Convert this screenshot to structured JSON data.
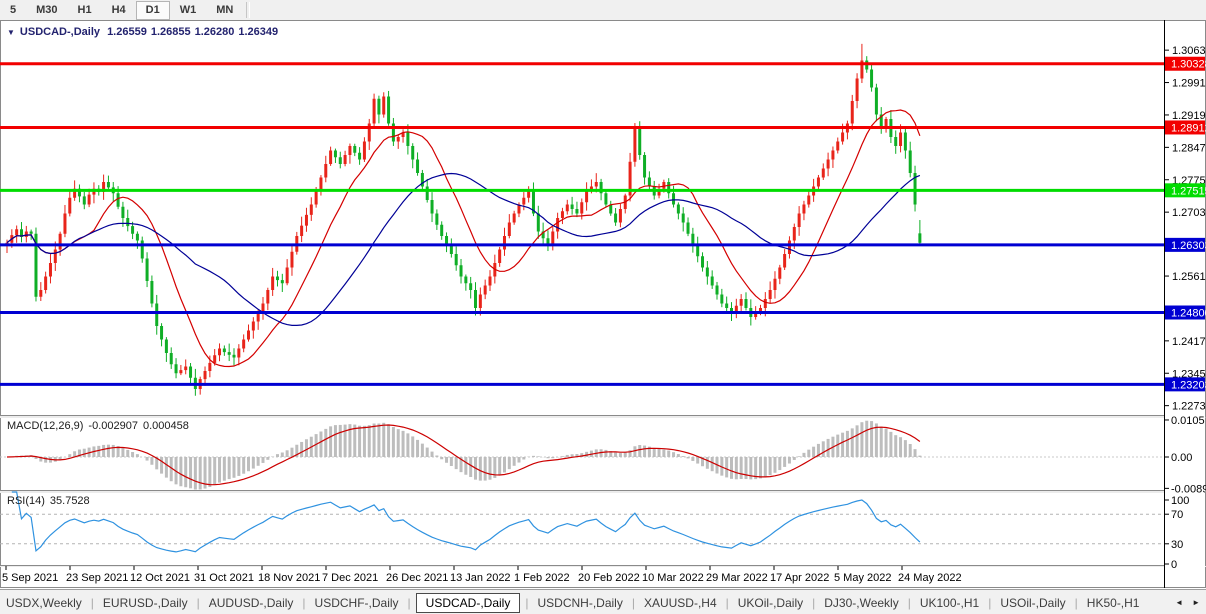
{
  "toolbar": {
    "timeframes": [
      {
        "label": "5",
        "active": false
      },
      {
        "label": "M30",
        "active": false
      },
      {
        "label": "H1",
        "active": false
      },
      {
        "label": "H4",
        "active": false
      },
      {
        "label": "D1",
        "active": true
      },
      {
        "label": "W1",
        "active": false
      },
      {
        "label": "MN",
        "active": false
      }
    ]
  },
  "chart": {
    "dropdown_icon": "▼",
    "symbol": "USDCAD-,Daily",
    "open": "1.26559",
    "high": "1.26855",
    "low": "1.26280",
    "close": "1.26349"
  },
  "indicators": {
    "macd": {
      "label": "MACD(12,26,9)",
      "value_main": "-0.002907",
      "value_signal": "0.000458",
      "axis_ticks": [
        "0.010578",
        "0.00",
        "-0.00896"
      ],
      "axis_values": [
        0.010578,
        0.0,
        -0.00896
      ],
      "histogram_color": "#bdbdbd",
      "signal_color": "#cc0000"
    },
    "rsi": {
      "label": "RSI(14)",
      "value": "35.7528",
      "axis_ticks": [
        "100",
        "70",
        "30",
        "0"
      ],
      "axis_values": [
        100,
        70,
        30,
        0
      ],
      "levels": [
        70,
        30
      ],
      "line_color": "#2f92e0"
    }
  },
  "price_axis": {
    "ticks": [
      "1.30630",
      "1.29910",
      "1.29190",
      "1.28470",
      "1.27750",
      "1.27030",
      "1.25610",
      "1.24170",
      "1.23450",
      "1.22730"
    ]
  },
  "key_levels": [
    {
      "label": "1.30328",
      "price": 1.30328,
      "color": "#f20000",
      "kind": "resistance"
    },
    {
      "label": "1.28912",
      "price": 1.28912,
      "color": "#f20000",
      "kind": "resistance"
    },
    {
      "label": "1.27515",
      "price": 1.27515,
      "color": "#00dc00",
      "kind": "pivot"
    },
    {
      "label": "1.26303",
      "price": 1.26303,
      "color": "#0000d2",
      "kind": "support"
    },
    {
      "label": "1.24800",
      "price": 1.248,
      "color": "#0000d2",
      "kind": "support"
    },
    {
      "label": "1.23203",
      "price": 1.23203,
      "color": "#0000d2",
      "kind": "support"
    }
  ],
  "x_axis": {
    "dates": [
      "5 Sep 2021",
      "23 Sep 2021",
      "12 Oct 2021",
      "31 Oct 2021",
      "18 Nov 2021",
      "7 Dec 2021",
      "26 Dec 2021",
      "13 Jan 2022",
      "1 Feb 2022",
      "20 Feb 2022",
      "10 Mar 2022",
      "29 Mar 2022",
      "17 Apr 2022",
      "5 May 2022",
      "24 May 2022"
    ]
  },
  "tabs": {
    "items": [
      {
        "label": "USDX,Weekly",
        "active": false
      },
      {
        "label": "EURUSD-,Daily",
        "active": false
      },
      {
        "label": "AUDUSD-,Daily",
        "active": false
      },
      {
        "label": "USDCHF-,Daily",
        "active": false
      },
      {
        "label": "USDCAD-,Daily",
        "active": true
      },
      {
        "label": "USDCNH-,Daily",
        "active": false
      },
      {
        "label": "XAUUSD-,H4",
        "active": false
      },
      {
        "label": "UKOil-,Daily",
        "active": false
      },
      {
        "label": "DJ30-,Weekly",
        "active": false
      },
      {
        "label": "UK100-,H1",
        "active": false
      },
      {
        "label": "USOil-,Daily",
        "active": false
      },
      {
        "label": "HK50-,H1",
        "active": false
      }
    ],
    "scroll_left_icon": "◄",
    "scroll_right_icon": "►"
  },
  "chart_data": {
    "type": "candlestick",
    "symbol": "USDCAD",
    "timeframe": "Daily",
    "title": "USDCAD-,Daily",
    "x_range_dates": [
      "5 Sep 2021",
      "24 May 2022"
    ],
    "price_range": {
      "top": 1.313,
      "bottom": 1.2254
    },
    "note": "open[i]=close[i-1]; closes estimated from pixels; last bar uses exact OHLC shown in title",
    "first_open": 1.2628,
    "closes": [
      1.2635,
      1.2652,
      1.2665,
      1.2648,
      1.266,
      1.2655,
      1.2515,
      1.253,
      1.256,
      1.259,
      1.262,
      1.2655,
      1.27,
      1.2735,
      1.2755,
      1.2738,
      1.272,
      1.2742,
      1.2755,
      1.2748,
      1.277,
      1.2758,
      1.2745,
      1.2715,
      1.269,
      1.2672,
      1.2655,
      1.264,
      1.26,
      1.255,
      1.25,
      1.245,
      1.242,
      1.239,
      1.2365,
      1.2345,
      1.2352,
      1.236,
      1.2335,
      1.231,
      1.2332,
      1.235,
      1.2368,
      1.2385,
      1.24,
      1.2392,
      1.2386,
      1.238,
      1.24,
      1.242,
      1.244,
      1.246,
      1.248,
      1.25,
      1.253,
      1.256,
      1.2552,
      1.2545,
      1.258,
      1.2615,
      1.265,
      1.2673,
      1.2697,
      1.272,
      1.275,
      1.278,
      1.281,
      1.284,
      1.2825,
      1.281,
      1.283,
      1.285,
      1.2835,
      1.282,
      1.286,
      1.29,
      1.2955,
      1.292,
      1.296,
      1.29,
      1.286,
      1.287,
      1.288,
      1.285,
      1.282,
      1.279,
      1.276,
      1.273,
      1.27,
      1.2675,
      1.265,
      1.263,
      1.261,
      1.2585,
      1.256,
      1.2545,
      1.253,
      1.249,
      1.252,
      1.254,
      1.256,
      1.259,
      1.262,
      1.265,
      1.268,
      1.27,
      1.272,
      1.2735,
      1.275,
      1.27,
      1.266,
      1.2645,
      1.263,
      1.266,
      1.269,
      1.2705,
      1.272,
      1.271,
      1.27,
      1.2725,
      1.275,
      1.276,
      1.277,
      1.2745,
      1.272,
      1.27,
      1.268,
      1.271,
      1.274,
      1.2815,
      1.289,
      1.283,
      1.278,
      1.276,
      1.274,
      1.2755,
      1.277,
      1.2745,
      1.272,
      1.27,
      1.268,
      1.2655,
      1.263,
      1.2605,
      1.258,
      1.256,
      1.254,
      1.252,
      1.25,
      1.249,
      1.248,
      1.2495,
      1.251,
      1.249,
      1.247,
      1.248,
      1.249,
      1.251,
      1.253,
      1.2555,
      1.258,
      1.261,
      1.264,
      1.267,
      1.27,
      1.272,
      1.274,
      1.276,
      1.278,
      1.28,
      1.282,
      1.284,
      1.286,
      1.288,
      1.29,
      1.295,
      1.3,
      1.304,
      1.302,
      1.298,
      1.292,
      1.289,
      1.291,
      1.287,
      1.285,
      1.288,
      1.284,
      1.279,
      1.272,
      1.26349
    ],
    "last_candle": {
      "open": 1.26559,
      "high": 1.26855,
      "low": 1.2628,
      "close": 1.26349
    },
    "wick_overrides": {
      "39": {
        "low": 1.2295
      },
      "130": {
        "high": 1.2901
      },
      "177": {
        "high": 1.3077
      }
    },
    "bull_color": "#e8241a",
    "bear_color": "#0fae26",
    "ma_fast": {
      "period": 13,
      "color": "#d40000"
    },
    "ma_slow": {
      "period": 34,
      "color": "#000096"
    },
    "macd_params": {
      "fast": 12,
      "slow": 26,
      "signal": 9
    },
    "rsi_period": 14
  }
}
